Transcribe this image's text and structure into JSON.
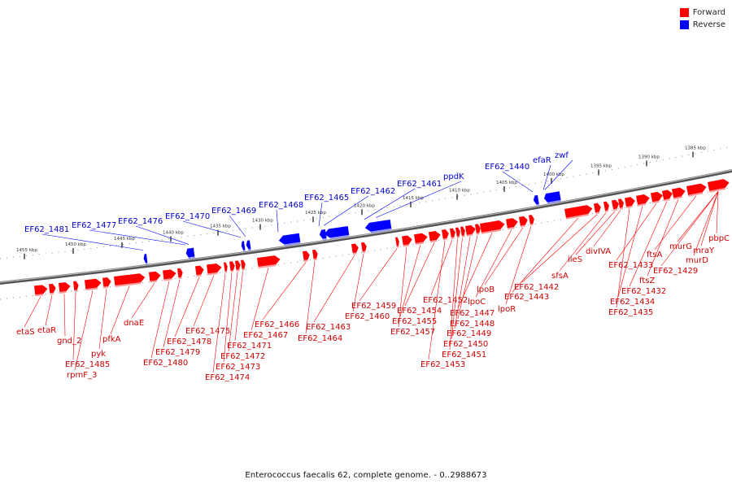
{
  "legend": {
    "items": [
      {
        "label": "Forward",
        "color": "#ff0000"
      },
      {
        "label": "Reverse",
        "color": "#0000ff"
      }
    ]
  },
  "caption": "Enterococcus faecalis 62, complete genome. - 0..2988673",
  "colors": {
    "forward": "#ff0000",
    "forward_label": "#cc0000",
    "reverse": "#0000ff",
    "reverse_label": "#0000cc",
    "backbone": "#777777"
  },
  "scale_ticks": [
    "1455 kbp",
    "1450 kbp",
    "1445 kbp",
    "1440 kbp",
    "1435 kbp",
    "1430 kbp",
    "1425 kbp",
    "1420 kbp",
    "1415 kbp",
    "1410 kbp",
    "1405 kbp",
    "1400 kbp",
    "1395 kbp",
    "1390 kbp",
    "1385 kbp"
  ],
  "reverse_genes": [
    "EF62_1481",
    "EF62_1477",
    "EF62_1476",
    "EF62_1470",
    "EF62_1469",
    "EF62_1468",
    "EF62_1465",
    "EF62_1462",
    "EF62_1461",
    "ppdK",
    "EF62_1440",
    "efaR",
    "zwf"
  ],
  "forward_genes": [
    "etaS",
    "etaR",
    "gnd_2",
    "EF62_1485",
    "rpmF_3",
    "pyk",
    "pfkA",
    "dnaE",
    "EF62_1480",
    "EF62_1479",
    "EF62_1478",
    "EF62_1475",
    "EF62_1474",
    "EF62_1473",
    "EF62_1472",
    "EF62_1471",
    "EF62_1467",
    "EF62_1466",
    "EF62_1464",
    "EF62_1463",
    "EF62_1460",
    "EF62_1459",
    "EF62_1457",
    "EF62_1455",
    "EF62_1454",
    "EF62_1453",
    "EF62_1452",
    "EF62_1451",
    "EF62_1450",
    "EF62_1449",
    "EF62_1448",
    "EF62_1447",
    "lpoC",
    "lpoB",
    "lpoR",
    "EF62_1443",
    "EF62_1442",
    "sfsA",
    "ileS",
    "divIVA",
    "EF62_1435",
    "EF62_1434",
    "EF62_1433",
    "EF62_1432",
    "ftsZ",
    "ftsA",
    "EF62_1429",
    "murG",
    "murD",
    "mraY",
    "pbpC"
  ]
}
